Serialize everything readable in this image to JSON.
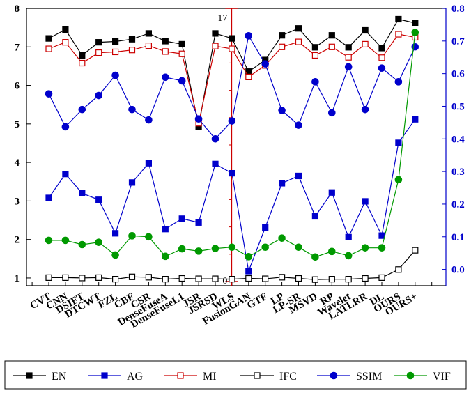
{
  "chart_data": {
    "type": "line",
    "categories": [
      "CVT",
      "CNN",
      "DSIFT",
      "DTCWT",
      "FZL",
      "CBF",
      "CSR",
      "DenseFuseA",
      "DenseFuseL1",
      "JSR",
      "JSRSD",
      "WLS",
      "FusionGAN",
      "GTF",
      "LP",
      "LP-SR",
      "MSVD",
      "RP",
      "Wavelet",
      "LATLRR",
      "DL",
      "OURS",
      "OURS+"
    ],
    "left_axis": {
      "ylim": [
        0.8,
        8
      ],
      "ticks": [
        1,
        2,
        3,
        4,
        5,
        6,
        7,
        8
      ],
      "color": "#000000"
    },
    "right_axis": {
      "ylim": [
        -0.05,
        0.8
      ],
      "ticks": [
        "0.0",
        "0.1",
        "0.2",
        "0.3",
        "0.4",
        "0.5",
        "0.6",
        "0.7",
        "0.8"
      ],
      "color": "#0000cc"
    },
    "series": [
      {
        "name": "EN",
        "axis": "left",
        "color": "#000000",
        "marker": "square-filled",
        "values": [
          7.22,
          7.45,
          6.78,
          7.12,
          7.14,
          7.2,
          7.35,
          7.15,
          7.07,
          4.93,
          7.35,
          7.22,
          6.36,
          6.66,
          7.3,
          7.48,
          6.99,
          7.3,
          6.99,
          7.43,
          6.97,
          7.72,
          7.62
        ]
      },
      {
        "name": "AG",
        "axis": "left",
        "color": "#0000cc",
        "marker": "square-filled",
        "values": [
          3.08,
          3.7,
          3.2,
          3.03,
          2.16,
          3.48,
          3.98,
          2.27,
          2.54,
          2.44,
          3.96,
          3.72,
          1.18,
          2.31,
          3.46,
          3.65,
          2.6,
          3.22,
          2.06,
          2.99,
          2.1,
          4.51,
          5.12
        ]
      },
      {
        "name": "MI",
        "axis": "left",
        "color": "#cc0000",
        "marker": "square-open",
        "values": [
          6.95,
          7.12,
          6.58,
          6.85,
          6.87,
          6.92,
          7.03,
          6.88,
          6.82,
          5.02,
          7.02,
          6.95,
          6.22,
          6.52,
          7.0,
          7.13,
          6.78,
          7.0,
          6.73,
          7.07,
          6.72,
          7.33,
          7.25
        ]
      },
      {
        "name": "IFC",
        "axis": "left",
        "color": "#000000",
        "marker": "square-open",
        "values": [
          1.01,
          1.01,
          1.0,
          1.01,
          0.97,
          1.03,
          1.02,
          0.97,
          0.99,
          0.98,
          0.98,
          0.97,
          0.99,
          0.98,
          1.02,
          0.99,
          0.96,
          0.97,
          0.97,
          0.99,
          1.01,
          1.22,
          1.72
        ]
      },
      {
        "name": "SSIM",
        "axis": "right",
        "color": "#0000cc",
        "marker": "circle-filled",
        "values": [
          0.538,
          0.437,
          0.49,
          0.533,
          0.595,
          0.49,
          0.458,
          0.589,
          0.578,
          0.461,
          0.4,
          0.455,
          0.716,
          0.63,
          0.487,
          0.442,
          0.575,
          0.48,
          0.621,
          0.49,
          0.617,
          0.575,
          0.682
        ]
      },
      {
        "name": "VIF",
        "axis": "right",
        "color": "#009900",
        "marker": "circle-filled",
        "values": [
          0.089,
          0.089,
          0.076,
          0.083,
          0.044,
          0.103,
          0.1,
          0.04,
          0.063,
          0.056,
          0.064,
          0.068,
          0.039,
          0.068,
          0.096,
          0.068,
          0.038,
          0.055,
          0.042,
          0.066,
          0.066,
          0.275,
          0.726
        ]
      }
    ],
    "annotation": {
      "top_label": "17",
      "bottom_label": "0",
      "color": "#cc0000"
    },
    "grid": false,
    "legend_position": "bottom"
  }
}
